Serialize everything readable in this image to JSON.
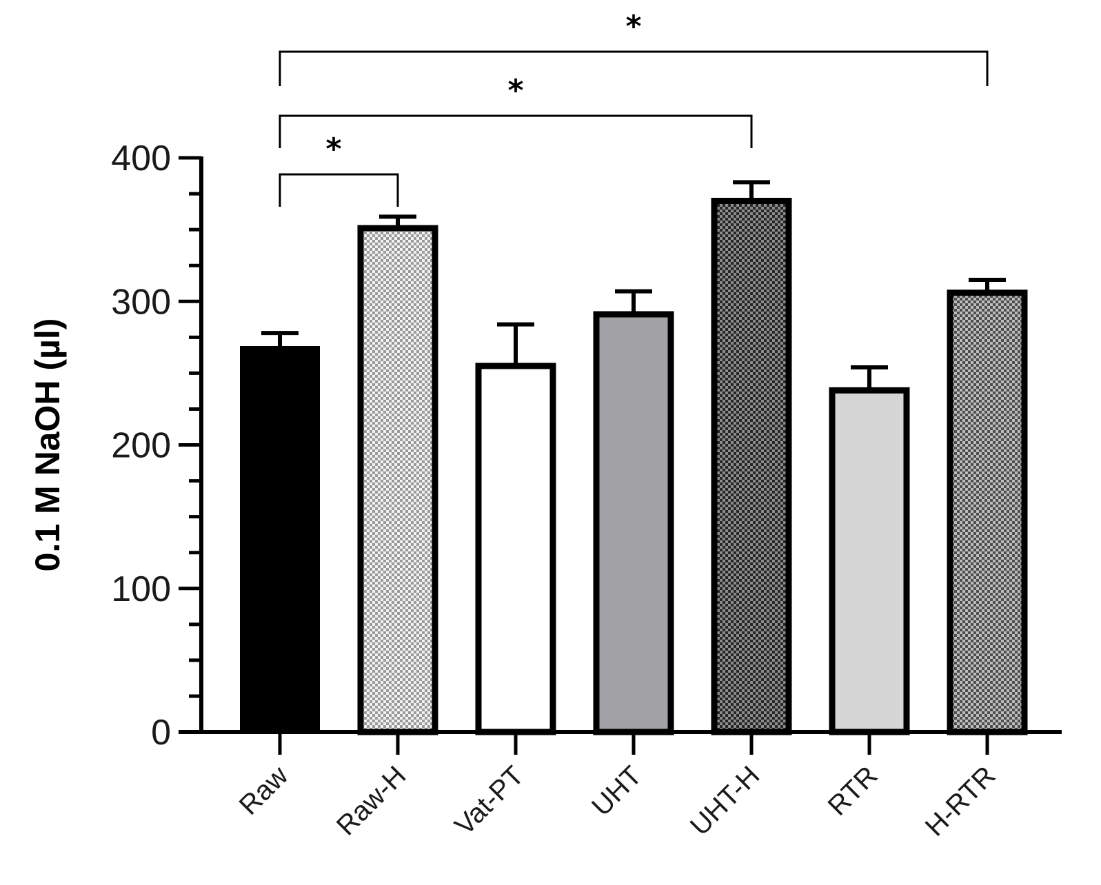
{
  "chart_data": {
    "type": "bar",
    "title": "",
    "xlabel": "",
    "ylabel": "0.1 M NaOH (µl)",
    "ylim": [
      0,
      400
    ],
    "yticks": [
      0,
      100,
      200,
      300,
      400
    ],
    "categories": [
      "Raw",
      "Raw-H",
      "Vat-PT",
      "UHT",
      "UHT-H",
      "RTR",
      "H-RTR"
    ],
    "values": [
      267,
      351,
      255,
      291,
      370,
      238,
      306
    ],
    "errors": [
      11,
      8,
      29,
      16,
      13,
      16,
      9
    ],
    "fills": [
      {
        "color": "#000000",
        "pattern": "solid"
      },
      {
        "color": "#cfcfcf",
        "pattern": "checker-light"
      },
      {
        "color": "#ffffff",
        "pattern": "solid"
      },
      {
        "color": "#a3a3a7",
        "pattern": "solid"
      },
      {
        "color": "#555555",
        "pattern": "checker-dark"
      },
      {
        "color": "#d6d6d6",
        "pattern": "solid"
      },
      {
        "color": "#7a7a7a",
        "pattern": "checker-medium"
      }
    ],
    "significance": [
      {
        "from": "Raw",
        "to": "Raw-H",
        "label": "*"
      },
      {
        "from": "Raw",
        "to": "UHT-H",
        "label": "*"
      },
      {
        "from": "Raw",
        "to": "H-RTR",
        "label": "*"
      }
    ],
    "grid": false,
    "legend": "none"
  }
}
